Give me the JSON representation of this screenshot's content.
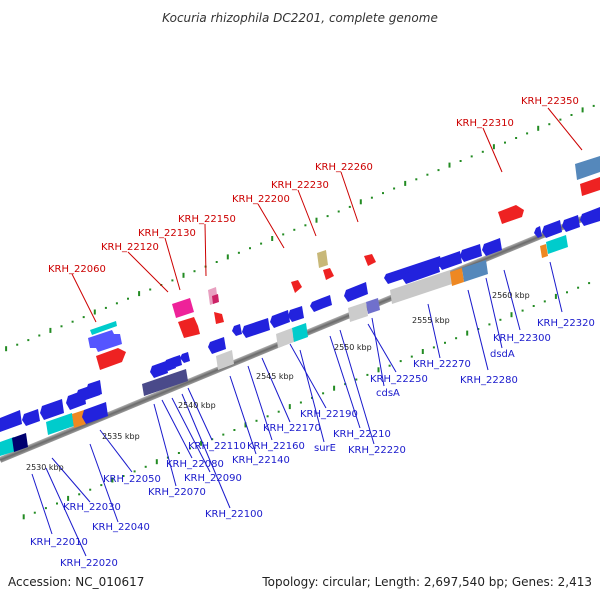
{
  "title": "Kocuria rhizophila DC2201, complete genome",
  "footer": {
    "accession": "Accession: NC_010617",
    "summary": "Topology: circular; Length: 2,697,540 bp; Genes: 2,413"
  },
  "colors": {
    "forward_label": "#cc0000",
    "reverse_label": "#1a1acc",
    "axis": "#808080",
    "tick": "#228b22"
  },
  "kbp_ticks": [
    "2530 kbp",
    "2535 kbp",
    "2540 kbp",
    "2545 kbp",
    "2550 kbp",
    "2555 kbp",
    "2560 kbp"
  ],
  "forward_labels": [
    "KRH_22060",
    "KRH_22120",
    "KRH_22130",
    "KRH_22150",
    "KRH_22200",
    "KRH_22230",
    "KRH_22260",
    "KRH_22310",
    "KRH_22350"
  ],
  "reverse_labels": [
    "KRH_22010",
    "KRH_22020",
    "KRH_22030",
    "KRH_22040",
    "KRH_22050",
    "KRH_22070",
    "KRH_22080",
    "KRH_22090",
    "KRH_22100",
    "KRH_22110",
    "KRH_22140",
    "KRH_22160",
    "KRH_22170",
    "surE",
    "KRH_22190",
    "KRH_22210",
    "KRH_22220",
    "KRH_22250",
    "cdsA",
    "KRH_22270",
    "KRH_22280",
    "dsdA",
    "KRH_22300",
    "KRH_22320"
  ]
}
